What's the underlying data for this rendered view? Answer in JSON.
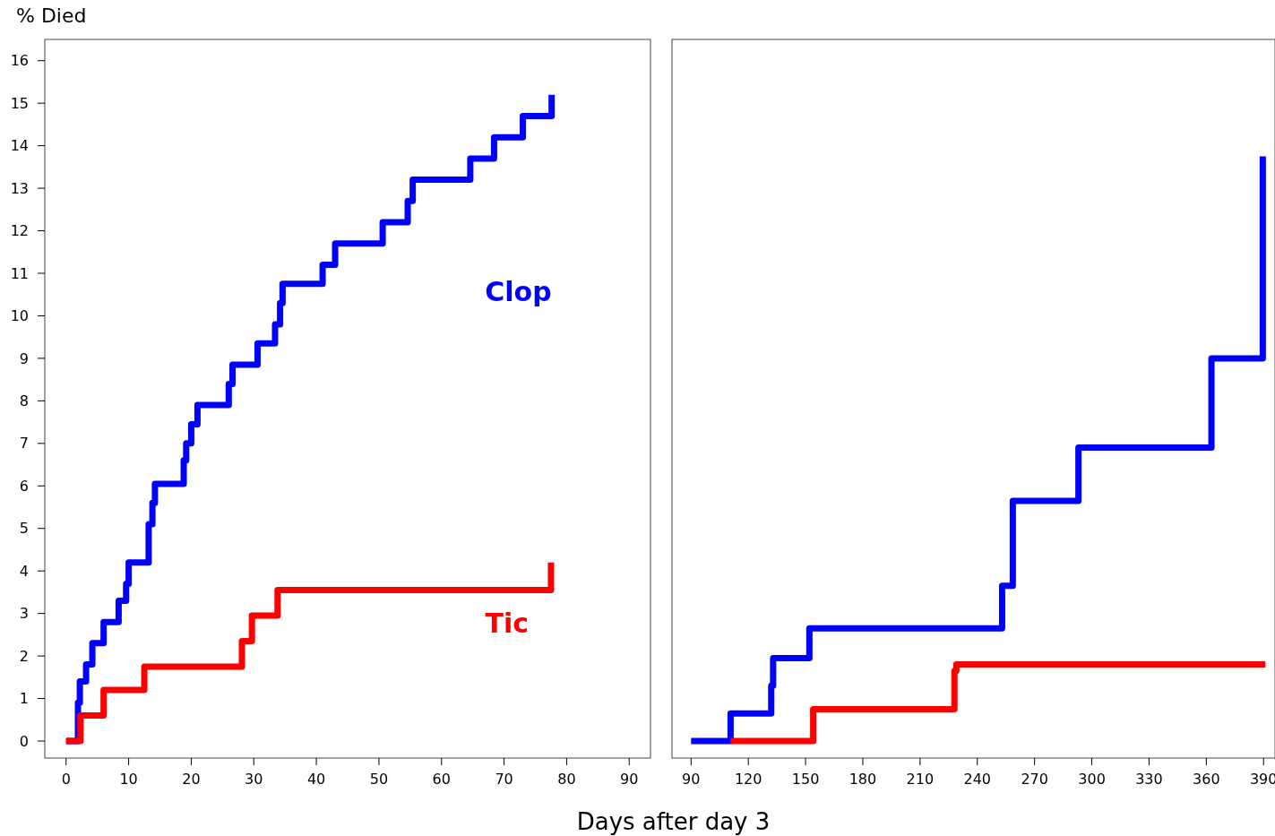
{
  "chart_data": [
    {
      "type": "step",
      "ylabel": "% Died",
      "xlabel": "Days after day 3",
      "xlim": [
        -3.4,
        93.4
      ],
      "xticks": [
        0,
        10,
        20,
        30,
        40,
        50,
        60,
        70,
        80,
        90
      ],
      "ylim": [
        -0.4,
        16.5
      ],
      "yticks": [
        0,
        1,
        2,
        3,
        4,
        5,
        6,
        7,
        8,
        9,
        10,
        11,
        12,
        13,
        14,
        15,
        16
      ],
      "line_style": "solid",
      "series": [
        {
          "name": "Clop",
          "color": "#0000ff",
          "x": [
            0,
            1.9,
            2.2,
            3.2,
            4.2,
            6,
            8.4,
            9.6,
            10,
            13.2,
            13.8,
            14.2,
            18.8,
            19.2,
            20,
            21,
            26,
            26.6,
            30.6,
            33.4,
            34.2,
            34.6,
            41,
            43,
            50.6,
            54.6,
            55.4,
            64.6,
            68.4,
            73,
            77.6
          ],
          "values": [
            0,
            0.9,
            1.4,
            1.8,
            2.3,
            2.8,
            3.3,
            3.7,
            4.2,
            5.1,
            5.6,
            6.05,
            6.6,
            7.0,
            7.45,
            7.9,
            8.4,
            8.85,
            9.35,
            9.8,
            10.3,
            10.75,
            11.2,
            11.7,
            12.2,
            12.7,
            13.2,
            13.7,
            14.2,
            14.7,
            15.2
          ]
        },
        {
          "name": "Tic",
          "color": "#ff0000",
          "x": [
            0,
            2.3,
            6,
            12.5,
            28.1,
            29.7,
            33.8,
            77.5
          ],
          "values": [
            0,
            0.6,
            1.2,
            1.75,
            2.35,
            2.95,
            3.55,
            4.2
          ]
        }
      ]
    },
    {
      "type": "step",
      "xlim": [
        80,
        396
      ],
      "xticks": [
        90,
        120,
        150,
        180,
        210,
        240,
        270,
        300,
        330,
        360,
        390
      ],
      "ylim": [
        -0.4,
        16.5
      ],
      "tick_labels": "x",
      "line_style": "solid",
      "series": [
        {
          "color": "#0000ff",
          "x": [
            90,
            110.7,
            132,
            133,
            152,
            253,
            258.6,
            293,
            362.7,
            389.6
          ],
          "values": [
            0,
            0.65,
            1.3,
            1.95,
            2.65,
            3.65,
            5.65,
            6.9,
            9.0,
            13.75
          ]
        },
        {
          "color": "#ff0000",
          "x": [
            110.7,
            154,
            228,
            229,
            391
          ],
          "values": [
            0,
            0.75,
            1.65,
            1.8,
            1.8
          ]
        }
      ]
    }
  ]
}
